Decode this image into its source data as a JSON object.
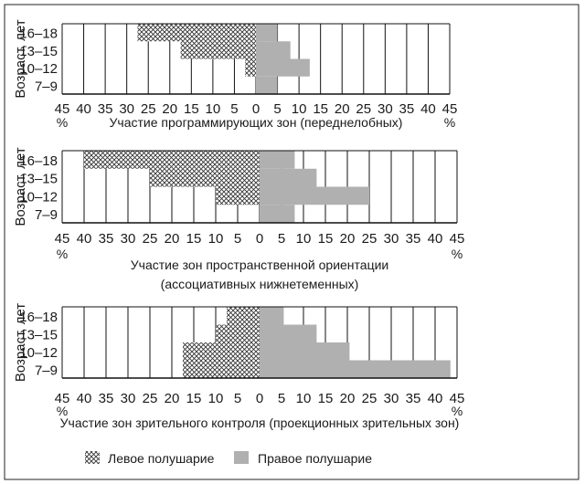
{
  "chart_data": [
    {
      "type": "bar",
      "orientation": "horizontal-diverging",
      "title": "Участие программирующих зон (переднелобных)",
      "ylabel": "Возраст, лет",
      "xlabel_unit": "%",
      "categories": [
        "16–18",
        "13–15",
        "10–12",
        "7–9"
      ],
      "xlim": [
        -45,
        45
      ],
      "ticks": [
        45,
        40,
        35,
        30,
        25,
        20,
        15,
        10,
        5,
        0,
        5,
        10,
        15,
        20,
        25,
        30,
        35,
        40,
        45
      ],
      "series": [
        {
          "name": "Левое полушарие",
          "values": [
            27.5,
            17.5,
            2.5,
            0
          ]
        },
        {
          "name": "Правое полушарие",
          "values": [
            5,
            8,
            12.5,
            5
          ]
        }
      ]
    },
    {
      "type": "bar",
      "orientation": "horizontal-diverging",
      "title": "Участие зон пространственной ориентации",
      "title2": "(ассоциативных нижнетеменных)",
      "ylabel": "Возраст, лет",
      "xlabel_unit": "%",
      "categories": [
        "16–18",
        "13–15",
        "10–12",
        "7–9"
      ],
      "xlim": [
        -45,
        45
      ],
      "ticks": [
        45,
        40,
        35,
        30,
        25,
        20,
        15,
        10,
        5,
        0,
        5,
        10,
        15,
        20,
        25,
        30,
        35,
        40,
        45
      ],
      "series": [
        {
          "name": "Левое полушарие",
          "values": [
            40,
            25,
            10,
            0
          ]
        },
        {
          "name": "Правое полушарие",
          "values": [
            8,
            13,
            25,
            8
          ]
        }
      ]
    },
    {
      "type": "bar",
      "orientation": "horizontal-diverging",
      "title": "Участие зон зрительного контроля (проекционных зрительных зон)",
      "ylabel": "Возраст, лет",
      "xlabel_unit": "%",
      "categories": [
        "16–18",
        "13–15",
        "10–12",
        "7–9"
      ],
      "xlim": [
        -45,
        45
      ],
      "ticks": [
        45,
        40,
        35,
        30,
        25,
        20,
        15,
        10,
        5,
        0,
        5,
        10,
        15,
        20,
        25,
        30,
        35,
        40,
        45
      ],
      "series": [
        {
          "name": "Левое полушарие",
          "values": [
            7.5,
            10,
            17.5,
            17.5
          ]
        },
        {
          "name": "Правое полушарие",
          "values": [
            5.5,
            13,
            20.5,
            43.5
          ]
        }
      ]
    }
  ],
  "legend": {
    "left_label": "Левое полушарие",
    "right_label": "Правое полушарие",
    "right_color": "#b0b0b0"
  }
}
